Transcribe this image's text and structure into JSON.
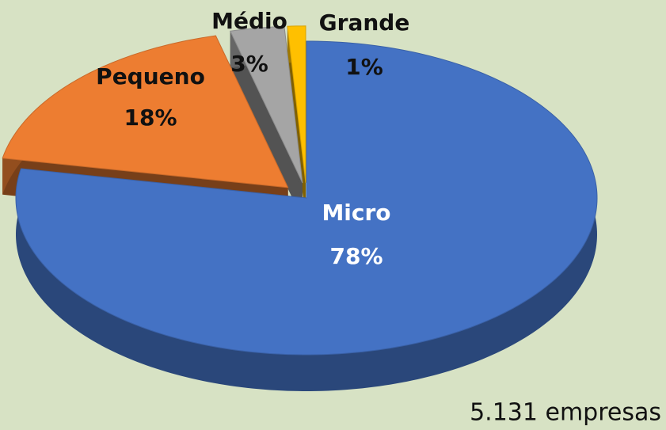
{
  "chart_data": {
    "type": "pie",
    "categories": [
      "Micro",
      "Pequeno",
      "Médio",
      "Grande"
    ],
    "values": [
      78,
      18,
      3,
      1
    ],
    "value_labels": [
      "78%",
      "18%",
      "3%",
      "1%"
    ],
    "colors": [
      "#4472c4",
      "#ed7d31",
      "#a5a5a5",
      "#ffc000"
    ],
    "annotation": "5.131 empresas"
  }
}
